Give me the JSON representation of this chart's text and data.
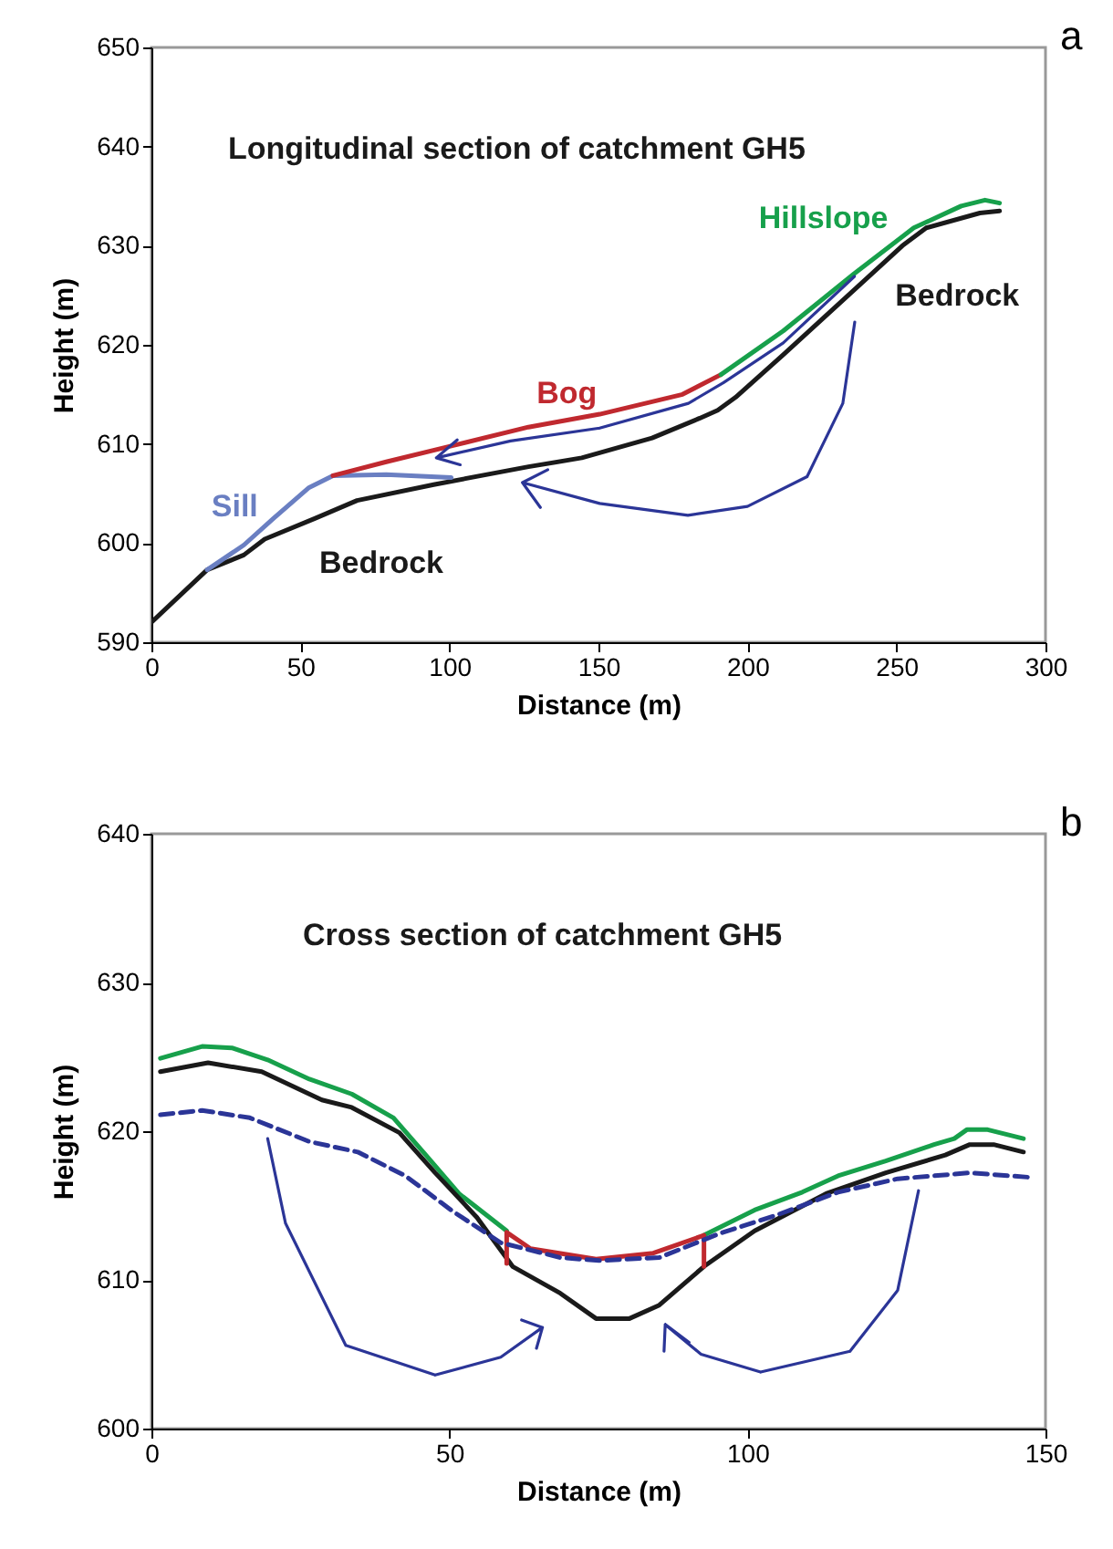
{
  "chart_data": [
    {
      "type": "line",
      "title": "Longitudinal section of catchment GH5",
      "xlabel": "Distance (m)",
      "ylabel": "Height (m)",
      "xlim": [
        0,
        300
      ],
      "ylim": [
        590,
        650
      ],
      "xticks": [
        0,
        50,
        100,
        150,
        200,
        250,
        300
      ],
      "yticks": [
        590,
        600,
        610,
        620,
        630,
        640,
        650
      ],
      "series": [
        {
          "name": "Bedrock",
          "color": "#1a1a1a",
          "x": [
            0,
            18.7,
            31,
            38,
            55,
            69,
            94.7,
            126.5,
            144.4,
            168,
            184,
            190,
            196,
            212,
            232,
            252,
            260,
            278,
            284.6
          ],
          "values": [
            592,
            597.3,
            598.8,
            600.4,
            602.5,
            604.3,
            605.9,
            607.7,
            608.6,
            610.6,
            612.6,
            613.4,
            614.7,
            619,
            624.5,
            630,
            631.8,
            633.3,
            633.5
          ]
        },
        {
          "name": "Sill",
          "color": "#6a7fc2",
          "x": [
            18.7,
            31,
            41,
            52.9,
            60.9,
            78.8,
            100.6
          ],
          "values": [
            597.3,
            599.8,
            602.5,
            605.6,
            606.8,
            606.9,
            606.6
          ]
        },
        {
          "name": "Bog",
          "color": "#c0292f",
          "x": [
            60.9,
            78.8,
            100.6,
            126.5,
            150.4,
            178.2,
            191.1
          ],
          "values": [
            606.8,
            608.2,
            609.8,
            611.7,
            613,
            615,
            617
          ]
        },
        {
          "name": "Hillslope",
          "color": "#17a04b",
          "x": [
            191.1,
            212,
            235.9,
            255.8,
            271.7,
            279.7,
            284.6
          ],
          "values": [
            617,
            621.4,
            627.2,
            631.8,
            634,
            634.6,
            634.3
          ]
        }
      ],
      "annotations": [
        "a",
        "Bedrock"
      ]
    },
    {
      "type": "line",
      "title": "Cross section of catchment GH5",
      "xlabel": "Distance (m)",
      "ylabel": "Height (m)",
      "xlim": [
        0,
        150
      ],
      "ylim": [
        600,
        640
      ],
      "xticks": [
        0,
        50,
        100,
        150
      ],
      "yticks": [
        600,
        610,
        620,
        630,
        640
      ],
      "series": [
        {
          "color": "#17a04b",
          "x": [
            1.5,
            8.5,
            13.5,
            19.5,
            26.5,
            33.6,
            40.6,
            45.6,
            51.6,
            59.6,
            76,
            92.7,
            101.2,
            109.2,
            115.2,
            123.2,
            131.3,
            134.7,
            136.8,
            140.3,
            146.3
          ],
          "values": [
            624.9,
            625.7,
            625.6,
            624.8,
            623.5,
            622.5,
            620.9,
            618.6,
            615.8,
            613.3,
            null,
            613,
            614.7,
            615.9,
            617,
            618,
            619.1,
            619.5,
            620.1,
            620.1,
            619.5
          ]
        },
        {
          "color": "#1a1a1a",
          "x": [
            1.5,
            9.5,
            18.5,
            28.6,
            33.6,
            41.6,
            47.6,
            54.6,
            60.6,
            68.6,
            74.6,
            80.2,
            85.2,
            92.7,
            101.2,
            113.2,
            123.2,
            133.2,
            137.3,
            141.3,
            146.3
          ],
          "values": [
            624,
            624.6,
            624,
            622.1,
            621.6,
            619.9,
            617.2,
            614.2,
            610.9,
            609.1,
            607.4,
            607.4,
            608.3,
            610.9,
            613.3,
            615.8,
            617.2,
            618.4,
            619.1,
            619.1,
            618.6
          ]
        },
        {
          "color": "#c0292f",
          "x": [
            59.6,
            59.6,
            63.6,
            74.6,
            84.2,
            92.7,
            92.7
          ],
          "values": [
            611.1,
            613.2,
            612.1,
            611.4,
            611.8,
            613,
            610.9
          ]
        },
        {
          "color": "#2b3597",
          "line_style": "dashed",
          "x": [
            1.5,
            8.5,
            16.5,
            26.5,
            34.6,
            42.6,
            50.6,
            58.6,
            68.6,
            75.1,
            85.2,
            95.2,
            105.2,
            115.2,
            125.2,
            137.3,
            147.3
          ],
          "values": [
            621.1,
            621.4,
            620.9,
            619.3,
            618.6,
            617,
            614.6,
            612.5,
            611.5,
            611.3,
            611.5,
            613.1,
            614.4,
            615.9,
            616.8,
            617.2,
            616.9
          ]
        }
      ],
      "annotations": [
        "b"
      ]
    }
  ]
}
